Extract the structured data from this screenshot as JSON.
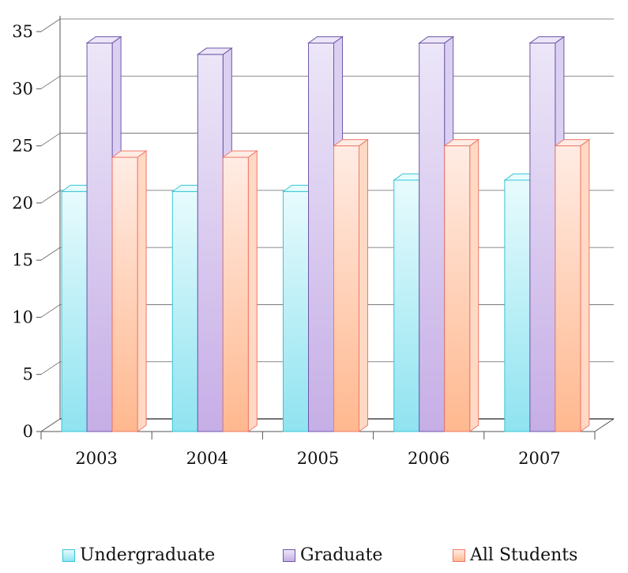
{
  "chart_data": {
    "type": "bar",
    "categories": [
      "2003",
      "2004",
      "2005",
      "2006",
      "2007"
    ],
    "series": [
      {
        "name": "Undergraduate",
        "values": [
          21,
          21,
          21,
          22,
          22
        ]
      },
      {
        "name": "Graduate",
        "values": [
          34,
          33,
          34,
          34,
          34
        ]
      },
      {
        "name": "All Students",
        "values": [
          24,
          24,
          25,
          25,
          25
        ]
      }
    ],
    "title": "",
    "xlabel": "",
    "ylabel": "",
    "ylim": [
      0,
      35
    ],
    "yticks": [
      "0",
      "5",
      "10",
      "15",
      "20",
      "25",
      "30",
      "35"
    ],
    "grid": true,
    "legend_position": "bottom",
    "style": "3d-clustered-column",
    "colors": {
      "Undergraduate": {
        "top": "#e8fbfd",
        "bottom": "#8fe3f0",
        "side": "#c4f1f7",
        "edge": "#35c6d6"
      },
      "Graduate": {
        "top": "#ece6f8",
        "bottom": "#c6aee6",
        "side": "#dcd0f2",
        "edge": "#6e58a8"
      },
      "All Students": {
        "top": "#ffece4",
        "bottom": "#ffb88f",
        "side": "#ffd9c4",
        "edge": "#f0786a"
      }
    }
  }
}
